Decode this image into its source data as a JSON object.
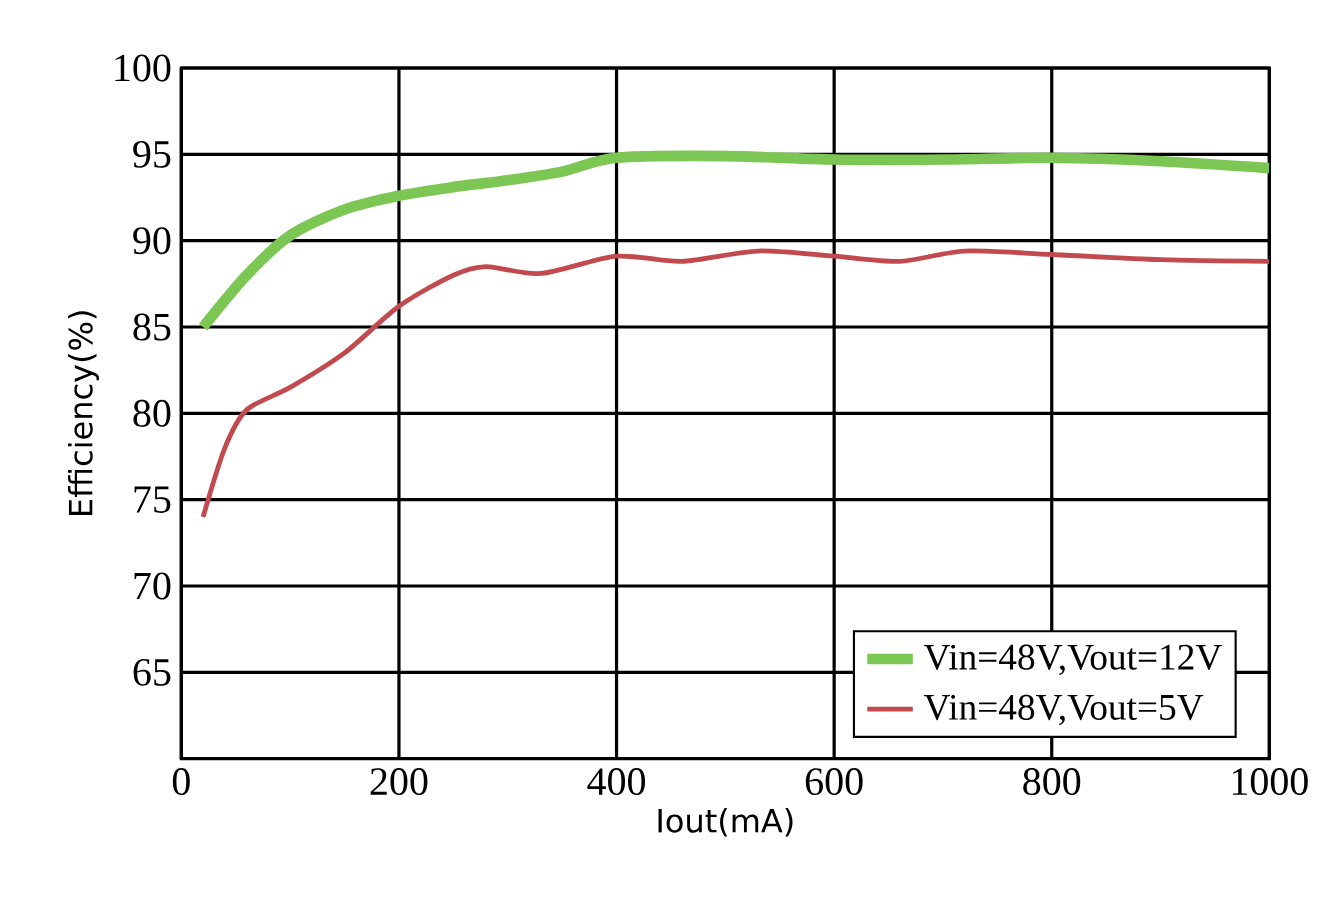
{
  "chart_data": {
    "type": "line",
    "xlabel": "Iout(mA)",
    "ylabel": "Efficiency(%)",
    "xlim": [
      0,
      1000
    ],
    "ylim": [
      60,
      100
    ],
    "xticks": [
      0,
      200,
      400,
      600,
      800,
      1000
    ],
    "yticks": [
      65,
      70,
      75,
      80,
      85,
      90,
      95,
      100
    ],
    "grid": true,
    "legend": "bottom right",
    "marker": "none",
    "line_style": "solid",
    "series": [
      {
        "name": "Vin=48V,Vout=12V",
        "color": "#7cc653",
        "x": [
          20,
          60,
          100,
          150,
          200,
          250,
          300,
          350,
          400,
          500,
          600,
          700,
          800,
          900,
          1000
        ],
        "values": [
          85,
          88,
          90.3,
          91.8,
          92.6,
          93.1,
          93.5,
          94,
          94.8,
          94.9,
          94.7,
          94.7,
          94.8,
          94.6,
          94.2
        ]
      },
      {
        "name": "Vin=48V,Vout=5V",
        "color": "#c24a4f",
        "x": [
          20,
          40,
          60,
          100,
          150,
          200,
          250,
          280,
          330,
          400,
          460,
          530,
          600,
          660,
          720,
          800,
          900,
          1000
        ],
        "values": [
          74,
          78,
          80.2,
          81.5,
          83.5,
          86.2,
          88,
          88.5,
          88.1,
          89.1,
          88.8,
          89.4,
          89.1,
          88.8,
          89.4,
          89.2,
          88.9,
          88.8
        ]
      }
    ]
  }
}
